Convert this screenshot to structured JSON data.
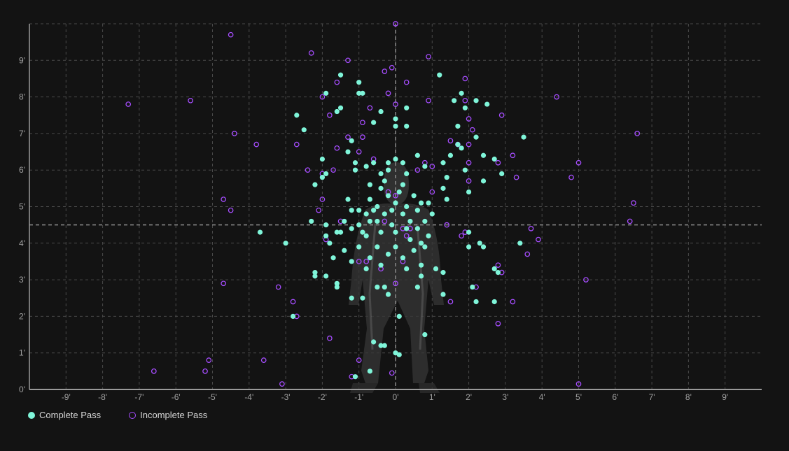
{
  "colors": {
    "background": "#131313",
    "grid": "#4a4a4a",
    "axis": "#9a9a9a",
    "complete": "#7ff5d9",
    "incomplete": "#a64dff",
    "silhouette": "#3a3a3a"
  },
  "legend": {
    "complete_label": "Complete Pass",
    "incomplete_label": "Incomplete Pass"
  },
  "chart_data": {
    "type": "scatter",
    "x_ticks": [
      "-9'",
      "-8'",
      "-7'",
      "-6'",
      "-5'",
      "-4'",
      "-3'",
      "-2'",
      "-1'",
      "0'",
      "1'",
      "2'",
      "3'",
      "4'",
      "5'",
      "6'",
      "7'",
      "8'",
      "9'"
    ],
    "y_ticks": [
      "0'",
      "1'",
      "2'",
      "3'",
      "4'",
      "5'",
      "6'",
      "7'",
      "8'",
      "9'"
    ],
    "xlim": [
      -10,
      10
    ],
    "ylim": [
      0,
      10
    ],
    "grid": true,
    "reference_lines": {
      "x": 0,
      "y": 4.5
    },
    "background_figure": "player-silhouette",
    "legend_position": "bottom-left",
    "series": [
      {
        "name": "Complete Pass",
        "marker": "filled-circle",
        "points": [
          [
            -2.7,
            7.5
          ],
          [
            -2.5,
            7.1
          ],
          [
            -1.9,
            8.1
          ],
          [
            -1.5,
            8.6
          ],
          [
            -1.0,
            8.4
          ],
          [
            -1.0,
            8.1
          ],
          [
            -0.9,
            8.1
          ],
          [
            -1.6,
            7.6
          ],
          [
            -1.5,
            7.7
          ],
          [
            -1.2,
            6.8
          ],
          [
            -1.3,
            6.5
          ],
          [
            -0.6,
            7.3
          ],
          [
            -0.4,
            7.6
          ],
          [
            0.0,
            7.4
          ],
          [
            0.0,
            7.2
          ],
          [
            0.3,
            7.7
          ],
          [
            0.3,
            7.2
          ],
          [
            1.2,
            8.6
          ],
          [
            1.8,
            8.1
          ],
          [
            1.6,
            7.9
          ],
          [
            2.2,
            7.9
          ],
          [
            2.5,
            7.8
          ],
          [
            1.9,
            7.7
          ],
          [
            1.7,
            7.2
          ],
          [
            2.2,
            6.9
          ],
          [
            1.7,
            6.7
          ],
          [
            1.8,
            6.6
          ],
          [
            2.4,
            6.4
          ],
          [
            2.7,
            6.3
          ],
          [
            3.5,
            6.9
          ],
          [
            2.9,
            5.9
          ],
          [
            2.4,
            5.7
          ],
          [
            2.0,
            5.4
          ],
          [
            1.9,
            6.0
          ],
          [
            1.5,
            6.4
          ],
          [
            1.3,
            6.2
          ],
          [
            1.4,
            5.8
          ],
          [
            1.3,
            5.5
          ],
          [
            1.4,
            5.2
          ],
          [
            0.9,
            5.1
          ],
          [
            0.6,
            6.4
          ],
          [
            0.8,
            6.1
          ],
          [
            -2.0,
            6.3
          ],
          [
            -2.0,
            5.8
          ],
          [
            -2.2,
            5.6
          ],
          [
            -1.9,
            5.9
          ],
          [
            -1.1,
            6.2
          ],
          [
            -1.1,
            6.0
          ],
          [
            -0.8,
            6.1
          ],
          [
            -0.6,
            6.2
          ],
          [
            -0.4,
            5.9
          ],
          [
            -0.2,
            6.0
          ],
          [
            -0.2,
            6.2
          ],
          [
            0.0,
            6.3
          ],
          [
            0.2,
            6.2
          ],
          [
            0.3,
            5.9
          ],
          [
            -0.7,
            5.6
          ],
          [
            -0.3,
            5.7
          ],
          [
            0.2,
            5.6
          ],
          [
            -2.3,
            4.6
          ],
          [
            -1.9,
            4.2
          ],
          [
            -1.9,
            4.5
          ],
          [
            -1.8,
            4.0
          ],
          [
            -1.6,
            4.3
          ],
          [
            -1.5,
            4.3
          ],
          [
            -1.4,
            4.6
          ],
          [
            -1.3,
            5.2
          ],
          [
            -1.2,
            4.9
          ],
          [
            -1.2,
            4.4
          ],
          [
            -1.0,
            4.9
          ],
          [
            -1.0,
            4.5
          ],
          [
            -0.9,
            4.3
          ],
          [
            -0.8,
            4.8
          ],
          [
            -0.8,
            4.2
          ],
          [
            -0.7,
            4.6
          ],
          [
            -0.7,
            5.2
          ],
          [
            -0.6,
            4.9
          ],
          [
            -0.5,
            5.0
          ],
          [
            -0.5,
            4.6
          ],
          [
            -0.4,
            4.3
          ],
          [
            -0.4,
            5.5
          ],
          [
            -0.3,
            4.8
          ],
          [
            -0.2,
            5.3
          ],
          [
            -0.1,
            4.9
          ],
          [
            -0.1,
            4.5
          ],
          [
            0.0,
            4.3
          ],
          [
            0.0,
            5.1
          ],
          [
            0.1,
            5.4
          ],
          [
            0.2,
            4.8
          ],
          [
            0.3,
            4.4
          ],
          [
            0.3,
            5.0
          ],
          [
            0.4,
            4.6
          ],
          [
            0.4,
            4.1
          ],
          [
            0.5,
            5.3
          ],
          [
            0.6,
            4.9
          ],
          [
            0.6,
            4.4
          ],
          [
            0.7,
            4.0
          ],
          [
            0.7,
            5.1
          ],
          [
            0.8,
            4.6
          ],
          [
            0.9,
            4.2
          ],
          [
            1.0,
            4.8
          ],
          [
            -1.4,
            3.8
          ],
          [
            -1.2,
            3.5
          ],
          [
            -1.0,
            3.9
          ],
          [
            -0.8,
            3.3
          ],
          [
            -0.7,
            3.6
          ],
          [
            -0.5,
            3.9
          ],
          [
            -0.4,
            3.4
          ],
          [
            -0.2,
            3.7
          ],
          [
            0.0,
            3.9
          ],
          [
            0.2,
            3.6
          ],
          [
            0.3,
            3.3
          ],
          [
            0.5,
            3.8
          ],
          [
            0.7,
            3.4
          ],
          [
            0.8,
            3.9
          ],
          [
            1.1,
            3.3
          ],
          [
            1.3,
            3.2
          ],
          [
            -1.7,
            3.6
          ],
          [
            -2.2,
            3.2
          ],
          [
            -1.9,
            3.1
          ],
          [
            -1.6,
            2.9
          ],
          [
            -1.6,
            2.8
          ],
          [
            -1.2,
            2.5
          ],
          [
            -0.9,
            2.5
          ],
          [
            -0.5,
            2.8
          ],
          [
            -0.2,
            2.6
          ],
          [
            -0.3,
            2.8
          ],
          [
            0.6,
            2.8
          ],
          [
            0.7,
            3.1
          ],
          [
            1.3,
            2.6
          ],
          [
            2.0,
            4.3
          ],
          [
            2.0,
            3.9
          ],
          [
            2.3,
            4.0
          ],
          [
            2.4,
            3.9
          ],
          [
            2.7,
            3.3
          ],
          [
            2.8,
            3.2
          ],
          [
            3.4,
            4.0
          ],
          [
            2.1,
            2.8
          ],
          [
            2.2,
            2.4
          ],
          [
            2.7,
            2.4
          ],
          [
            -3.0,
            4.0
          ],
          [
            -3.7,
            4.3
          ],
          [
            -2.2,
            3.1
          ],
          [
            -2.8,
            2.0
          ],
          [
            0.1,
            2.0
          ],
          [
            -0.6,
            1.3
          ],
          [
            -0.4,
            1.2
          ],
          [
            -0.3,
            1.2
          ],
          [
            0.0,
            1.0
          ],
          [
            0.1,
            0.95
          ],
          [
            0.8,
            1.5
          ],
          [
            -0.7,
            0.5
          ],
          [
            -1.1,
            0.35
          ]
        ]
      },
      {
        "name": "Incomplete Pass",
        "marker": "hollow-circle",
        "points": [
          [
            -4.5,
            9.7
          ],
          [
            -2.3,
            9.2
          ],
          [
            -1.3,
            9.0
          ],
          [
            0.0,
            10.0
          ],
          [
            0.9,
            9.1
          ],
          [
            -0.3,
            8.7
          ],
          [
            -0.1,
            8.8
          ],
          [
            1.9,
            8.5
          ],
          [
            0.3,
            8.4
          ],
          [
            -1.6,
            8.4
          ],
          [
            -2.0,
            8.0
          ],
          [
            -7.3,
            7.8
          ],
          [
            -5.6,
            7.9
          ],
          [
            -0.2,
            8.1
          ],
          [
            0.0,
            7.8
          ],
          [
            0.9,
            7.9
          ],
          [
            1.9,
            7.9
          ],
          [
            -0.7,
            7.7
          ],
          [
            -1.8,
            7.5
          ],
          [
            -0.9,
            7.3
          ],
          [
            2.0,
            7.4
          ],
          [
            2.9,
            7.5
          ],
          [
            4.4,
            8.0
          ],
          [
            6.6,
            7.0
          ],
          [
            -4.4,
            7.0
          ],
          [
            -3.8,
            6.7
          ],
          [
            -2.7,
            6.7
          ],
          [
            -1.3,
            6.9
          ],
          [
            -0.9,
            6.9
          ],
          [
            -1.0,
            6.5
          ],
          [
            -1.6,
            6.6
          ],
          [
            -0.6,
            6.3
          ],
          [
            1.5,
            6.8
          ],
          [
            1.7,
            6.7
          ],
          [
            2.0,
            6.7
          ],
          [
            2.1,
            7.1
          ],
          [
            3.2,
            6.4
          ],
          [
            5.0,
            6.2
          ],
          [
            -2.4,
            6.0
          ],
          [
            -2.0,
            5.9
          ],
          [
            -1.7,
            6.0
          ],
          [
            0.6,
            6.0
          ],
          [
            0.8,
            6.2
          ],
          [
            1.0,
            6.1
          ],
          [
            2.0,
            6.2
          ],
          [
            2.8,
            6.2
          ],
          [
            3.3,
            5.8
          ],
          [
            4.8,
            5.8
          ],
          [
            -0.2,
            5.4
          ],
          [
            0.0,
            5.3
          ],
          [
            1.0,
            5.4
          ],
          [
            2.0,
            5.7
          ],
          [
            -4.7,
            5.2
          ],
          [
            -4.5,
            4.9
          ],
          [
            -2.0,
            5.2
          ],
          [
            -2.1,
            4.9
          ],
          [
            -1.5,
            4.6
          ],
          [
            -0.3,
            4.6
          ],
          [
            0.2,
            4.4
          ],
          [
            0.4,
            4.4
          ],
          [
            1.4,
            4.5
          ],
          [
            1.8,
            4.2
          ],
          [
            1.9,
            4.3
          ],
          [
            3.7,
            4.4
          ],
          [
            3.9,
            4.1
          ],
          [
            6.5,
            5.1
          ],
          [
            6.4,
            4.6
          ],
          [
            -1.9,
            4.1
          ],
          [
            -1.0,
            3.5
          ],
          [
            -0.8,
            3.5
          ],
          [
            -0.4,
            3.3
          ],
          [
            0.2,
            3.5
          ],
          [
            0.3,
            4.2
          ],
          [
            3.6,
            3.7
          ],
          [
            2.8,
            3.4
          ],
          [
            2.9,
            3.2
          ],
          [
            0.0,
            2.9
          ],
          [
            1.5,
            2.4
          ],
          [
            2.2,
            2.8
          ],
          [
            3.2,
            2.4
          ],
          [
            5.2,
            3.0
          ],
          [
            -4.7,
            2.9
          ],
          [
            -3.2,
            2.8
          ],
          [
            -2.8,
            2.4
          ],
          [
            -2.7,
            2.0
          ],
          [
            -1.8,
            1.4
          ],
          [
            2.8,
            1.8
          ],
          [
            -5.1,
            0.8
          ],
          [
            -3.6,
            0.8
          ],
          [
            -6.6,
            0.5
          ],
          [
            -5.2,
            0.5
          ],
          [
            -1.0,
            0.8
          ],
          [
            -1.2,
            0.35
          ],
          [
            -0.1,
            0.45
          ],
          [
            -3.1,
            0.15
          ],
          [
            5.0,
            0.15
          ]
        ]
      }
    ]
  }
}
